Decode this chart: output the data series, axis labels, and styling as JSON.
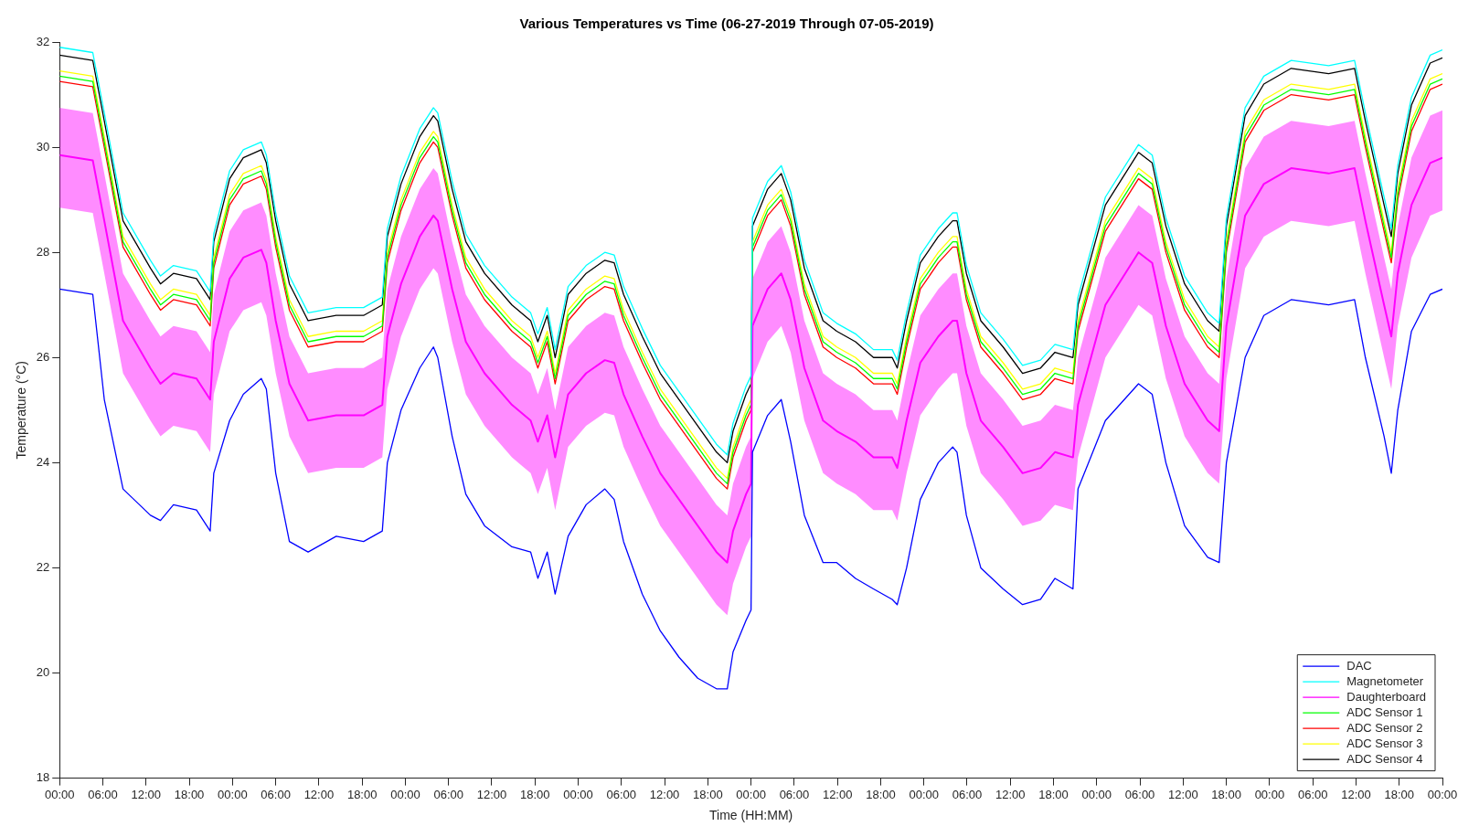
{
  "chart_data": {
    "type": "line",
    "title": "Various Temperatures vs Time (06-27-2019 Through 07-05-2019)",
    "xlabel": "Time (HH:MM)",
    "ylabel": "Temperature (°C)",
    "x": [
      "2019-06-27T00:00",
      "2019-06-27T04:36",
      "2019-06-27T06:12",
      "2019-06-27T08:48",
      "2019-06-27T12:36",
      "2019-06-27T14:00",
      "2019-06-27T15:48",
      "2019-06-27T19:00",
      "2019-06-27T20:54",
      "2019-06-27T21:24",
      "2019-06-27T23:36",
      "2019-06-28T01:30",
      "2019-06-28T04:00",
      "2019-06-28T04:42",
      "2019-06-28T06:00",
      "2019-06-28T07:54",
      "2019-06-28T10:30",
      "2019-06-28T14:24",
      "2019-06-28T18:12",
      "2019-06-28T20:48",
      "2019-06-28T21:30",
      "2019-06-28T23:24",
      "2019-06-29T02:00",
      "2019-06-29T03:54",
      "2019-06-29T04:30",
      "2019-06-29T06:30",
      "2019-06-29T08:24",
      "2019-06-29T11:00",
      "2019-06-29T14:48",
      "2019-06-29T17:24",
      "2019-06-29T18:24",
      "2019-06-29T19:42",
      "2019-06-29T20:48",
      "2019-06-29T22:36",
      "2019-06-30T01:06",
      "2019-06-30T03:42",
      "2019-06-30T05:00",
      "2019-06-30T06:18",
      "2019-06-30T08:54",
      "2019-06-30T11:24",
      "2019-06-30T14:00",
      "2019-06-30T16:36",
      "2019-06-30T19:12",
      "2019-06-30T20:42",
      "2019-06-30T21:30",
      "2019-06-30T23:18",
      "2019-07-01T00:00",
      "2019-07-01T00:12",
      "2019-07-01T02:18",
      "2019-07-01T04:12",
      "2019-07-01T05:30",
      "2019-07-01T07:24",
      "2019-07-01T10:00",
      "2019-07-01T11:54",
      "2019-07-01T14:30",
      "2019-07-01T17:00",
      "2019-07-01T19:36",
      "2019-07-01T20:18",
      "2019-07-01T21:36",
      "2019-07-01T23:30",
      "2019-07-02T02:00",
      "2019-07-02T04:00",
      "2019-07-02T04:36",
      "2019-07-02T05:54",
      "2019-07-02T07:54",
      "2019-07-02T11:00",
      "2019-07-02T13:42",
      "2019-07-02T16:12",
      "2019-07-02T18:12",
      "2019-07-02T20:42",
      "2019-07-02T21:24",
      "2019-07-03T01:12",
      "2019-07-03T05:48",
      "2019-07-03T07:42",
      "2019-07-03T09:36",
      "2019-07-03T12:12",
      "2019-07-03T15:24",
      "2019-07-03T17:00",
      "2019-07-03T18:00",
      "2019-07-03T20:36",
      "2019-07-03T23:12",
      "2019-07-04T03:00",
      "2019-07-04T08:12",
      "2019-07-04T11:48",
      "2019-07-04T13:18",
      "2019-07-04T15:54",
      "2019-07-04T16:54",
      "2019-07-04T17:48",
      "2019-07-04T19:42",
      "2019-07-04T22:18",
      "2019-07-05T00:00"
    ],
    "series": [
      {
        "name": "DAC",
        "color": "#0000ff",
        "values": [
          27.3,
          27.2,
          25.2,
          23.5,
          23.0,
          22.9,
          23.2,
          23.1,
          22.7,
          23.8,
          24.8,
          25.3,
          25.6,
          25.4,
          23.8,
          22.5,
          22.3,
          22.6,
          22.5,
          22.7,
          24.0,
          25.0,
          25.8,
          26.2,
          26.0,
          24.5,
          23.4,
          22.8,
          22.4,
          22.3,
          21.8,
          22.3,
          21.5,
          22.6,
          23.2,
          23.5,
          23.3,
          22.5,
          21.5,
          20.8,
          20.3,
          19.9,
          19.7,
          19.7,
          20.4,
          21.0,
          21.2,
          24.2,
          24.9,
          25.2,
          24.4,
          23.0,
          22.1,
          22.1,
          21.8,
          21.6,
          21.4,
          21.3,
          22.0,
          23.3,
          24.0,
          24.3,
          24.2,
          23.0,
          22.0,
          21.6,
          21.3,
          21.4,
          21.8,
          21.6,
          23.5,
          24.8,
          25.5,
          25.3,
          24.0,
          22.8,
          22.2,
          22.1,
          24.0,
          26.0,
          26.8,
          27.1,
          27.0,
          27.1,
          26.0,
          24.5,
          23.8,
          25.0,
          26.5,
          27.2,
          27.3
        ]
      },
      {
        "name": "Magnetometer",
        "color": "#00ffff",
        "values": [
          31.9,
          31.8,
          30.65,
          28.75,
          27.85,
          27.55,
          27.75,
          27.65,
          27.25,
          28.35,
          29.55,
          29.95,
          30.1,
          29.85,
          28.75,
          27.55,
          26.85,
          26.95,
          26.95,
          27.15,
          28.45,
          29.45,
          30.35,
          30.75,
          30.65,
          29.35,
          28.35,
          27.75,
          27.15,
          26.85,
          26.45,
          26.95,
          26.15,
          27.35,
          27.75,
          28.0,
          27.95,
          27.35,
          26.55,
          25.85,
          25.35,
          24.85,
          24.35,
          24.15,
          24.75,
          25.45,
          25.65,
          28.65,
          29.35,
          29.65,
          29.15,
          27.85,
          26.85,
          26.65,
          26.45,
          26.15,
          26.15,
          25.95,
          26.85,
          27.95,
          28.45,
          28.75,
          28.75,
          27.75,
          26.85,
          26.35,
          25.85,
          25.95,
          26.25,
          26.15,
          27.15,
          29.05,
          30.05,
          29.85,
          28.65,
          27.55,
          26.85,
          26.65,
          28.65,
          30.75,
          31.35,
          31.65,
          31.55,
          31.65,
          30.65,
          29.05,
          28.45,
          29.65,
          30.95,
          31.75,
          31.85
        ]
      },
      {
        "name": "Daughterboard",
        "color": "#ff00ff",
        "values": [
          29.85,
          29.75,
          28.6,
          26.7,
          25.8,
          25.5,
          25.7,
          25.6,
          25.2,
          26.3,
          27.5,
          27.9,
          28.05,
          27.8,
          26.7,
          25.5,
          24.8,
          24.9,
          24.9,
          25.1,
          26.4,
          27.4,
          28.3,
          28.7,
          28.6,
          27.3,
          26.3,
          25.7,
          25.1,
          24.8,
          24.4,
          24.9,
          24.1,
          25.3,
          25.7,
          25.95,
          25.9,
          25.3,
          24.5,
          23.8,
          23.3,
          22.8,
          22.3,
          22.1,
          22.7,
          23.4,
          23.6,
          26.6,
          27.3,
          27.6,
          27.1,
          25.8,
          24.8,
          24.6,
          24.4,
          24.1,
          24.1,
          23.9,
          24.8,
          25.9,
          26.4,
          26.7,
          26.7,
          25.7,
          24.8,
          24.3,
          23.8,
          23.9,
          24.2,
          24.1,
          25.1,
          27.0,
          28.0,
          27.8,
          26.6,
          25.5,
          24.8,
          24.6,
          26.6,
          28.7,
          29.3,
          29.6,
          29.5,
          29.6,
          28.6,
          27.0,
          26.4,
          27.6,
          28.9,
          29.7,
          29.8
        ],
        "lower": [
          28.85,
          28.75,
          27.6,
          25.7,
          24.8,
          24.5,
          24.7,
          24.6,
          24.2,
          25.3,
          26.5,
          26.9,
          27.05,
          26.8,
          25.7,
          24.5,
          23.8,
          23.9,
          23.9,
          24.1,
          25.4,
          26.4,
          27.3,
          27.7,
          27.6,
          26.3,
          25.3,
          24.7,
          24.1,
          23.8,
          23.4,
          23.9,
          23.1,
          24.3,
          24.7,
          24.95,
          24.9,
          24.3,
          23.5,
          22.8,
          22.3,
          21.8,
          21.3,
          21.1,
          21.7,
          22.4,
          22.6,
          25.6,
          26.3,
          26.6,
          26.1,
          24.8,
          23.8,
          23.6,
          23.4,
          23.1,
          23.1,
          22.9,
          23.8,
          24.9,
          25.4,
          25.7,
          25.7,
          24.7,
          23.8,
          23.3,
          22.8,
          22.9,
          23.2,
          23.1,
          24.1,
          26.0,
          27.0,
          26.8,
          25.6,
          24.5,
          23.8,
          23.6,
          25.6,
          27.7,
          28.3,
          28.6,
          28.5,
          28.6,
          27.6,
          26.0,
          25.4,
          26.6,
          27.9,
          28.7,
          28.8
        ],
        "upper": [
          30.75,
          30.65,
          29.5,
          27.6,
          26.7,
          26.4,
          26.6,
          26.5,
          26.1,
          27.2,
          28.4,
          28.8,
          28.95,
          28.7,
          27.6,
          26.4,
          25.7,
          25.8,
          25.8,
          26.0,
          27.3,
          28.3,
          29.2,
          29.6,
          29.5,
          28.2,
          27.2,
          26.6,
          26.0,
          25.7,
          25.3,
          25.8,
          25.0,
          26.2,
          26.6,
          26.85,
          26.8,
          26.2,
          25.4,
          24.7,
          24.2,
          23.7,
          23.2,
          23.0,
          23.6,
          24.3,
          24.5,
          27.5,
          28.2,
          28.5,
          28.0,
          26.7,
          25.7,
          25.5,
          25.3,
          25.0,
          25.0,
          24.8,
          25.7,
          26.8,
          27.3,
          27.6,
          27.6,
          26.6,
          25.7,
          25.2,
          24.7,
          24.8,
          25.1,
          25.0,
          26.0,
          27.9,
          28.9,
          28.7,
          27.5,
          26.4,
          25.7,
          25.5,
          27.5,
          29.6,
          30.2,
          30.5,
          30.4,
          30.5,
          29.5,
          27.9,
          27.3,
          28.5,
          29.8,
          30.6,
          30.7
        ]
      },
      {
        "name": "ADC Sensor 1",
        "color": "#00ff00",
        "values": [
          31.35,
          31.25,
          30.1,
          28.2,
          27.3,
          27.0,
          27.2,
          27.1,
          26.7,
          27.8,
          29.0,
          29.4,
          29.55,
          29.3,
          28.2,
          27.0,
          26.3,
          26.4,
          26.4,
          26.6,
          27.9,
          28.9,
          29.8,
          30.2,
          30.1,
          28.8,
          27.8,
          27.2,
          26.6,
          26.3,
          25.9,
          26.4,
          25.6,
          26.8,
          27.2,
          27.45,
          27.4,
          26.8,
          26.0,
          25.3,
          24.8,
          24.3,
          23.8,
          23.6,
          24.2,
          24.9,
          25.1,
          28.1,
          28.8,
          29.1,
          28.6,
          27.3,
          26.3,
          26.1,
          25.9,
          25.6,
          25.6,
          25.4,
          26.3,
          27.4,
          27.9,
          28.2,
          28.2,
          27.2,
          26.3,
          25.8,
          25.3,
          25.4,
          25.7,
          25.6,
          26.6,
          28.5,
          29.5,
          29.3,
          28.1,
          27.0,
          26.3,
          26.1,
          28.1,
          30.2,
          30.8,
          31.1,
          31.0,
          31.1,
          30.1,
          28.5,
          27.9,
          29.1,
          30.4,
          31.2,
          31.3
        ]
      },
      {
        "name": "ADC Sensor 2",
        "color": "#ff0000",
        "values": [
          31.25,
          31.15,
          30.0,
          28.1,
          27.2,
          26.9,
          27.1,
          27.0,
          26.6,
          27.7,
          28.9,
          29.3,
          29.45,
          29.2,
          28.1,
          26.9,
          26.2,
          26.3,
          26.3,
          26.5,
          27.8,
          28.8,
          29.7,
          30.1,
          30.0,
          28.7,
          27.7,
          27.1,
          26.5,
          26.2,
          25.8,
          26.3,
          25.5,
          26.7,
          27.1,
          27.35,
          27.3,
          26.7,
          25.9,
          25.2,
          24.7,
          24.2,
          23.7,
          23.5,
          24.1,
          24.8,
          25.0,
          28.0,
          28.7,
          29.0,
          28.5,
          27.2,
          26.2,
          26.0,
          25.8,
          25.5,
          25.5,
          25.3,
          26.2,
          27.3,
          27.8,
          28.1,
          28.1,
          27.1,
          26.2,
          25.7,
          25.2,
          25.3,
          25.6,
          25.5,
          26.5,
          28.4,
          29.4,
          29.2,
          28.0,
          26.9,
          26.2,
          26.0,
          28.0,
          30.1,
          30.7,
          31.0,
          30.9,
          31.0,
          30.0,
          28.4,
          27.8,
          29.0,
          30.3,
          31.1,
          31.2
        ]
      },
      {
        "name": "ADC Sensor 3",
        "color": "#ffff00",
        "values": [
          31.45,
          31.35,
          30.2,
          28.3,
          27.4,
          27.1,
          27.3,
          27.2,
          26.8,
          27.9,
          29.1,
          29.5,
          29.65,
          29.4,
          28.3,
          27.1,
          26.4,
          26.5,
          26.5,
          26.7,
          28.0,
          29.0,
          29.9,
          30.3,
          30.2,
          28.9,
          27.9,
          27.3,
          26.7,
          26.4,
          26.0,
          26.5,
          25.7,
          26.9,
          27.3,
          27.55,
          27.5,
          26.9,
          26.1,
          25.4,
          24.9,
          24.4,
          23.9,
          23.7,
          24.3,
          25.0,
          25.2,
          28.2,
          28.9,
          29.2,
          28.7,
          27.4,
          26.4,
          26.2,
          26.0,
          25.7,
          25.7,
          25.5,
          26.4,
          27.5,
          28.0,
          28.3,
          28.3,
          27.3,
          26.4,
          25.9,
          25.4,
          25.5,
          25.8,
          25.7,
          26.7,
          28.6,
          29.6,
          29.4,
          28.2,
          27.1,
          26.4,
          26.2,
          28.2,
          30.3,
          30.9,
          31.2,
          31.1,
          31.2,
          30.2,
          28.6,
          28.0,
          29.2,
          30.5,
          31.3,
          31.4
        ]
      },
      {
        "name": "ADC Sensor 4",
        "color": "#000000",
        "values": [
          31.75,
          31.65,
          30.5,
          28.6,
          27.7,
          27.4,
          27.6,
          27.5,
          27.1,
          28.2,
          29.4,
          29.8,
          29.95,
          29.7,
          28.6,
          27.4,
          26.7,
          26.8,
          26.8,
          27.0,
          28.3,
          29.3,
          30.2,
          30.6,
          30.5,
          29.2,
          28.2,
          27.6,
          27.0,
          26.7,
          26.3,
          26.8,
          26.0,
          27.2,
          27.6,
          27.85,
          27.8,
          27.2,
          26.4,
          25.7,
          25.2,
          24.7,
          24.2,
          24.0,
          24.6,
          25.3,
          25.5,
          28.5,
          29.2,
          29.5,
          29.0,
          27.7,
          26.7,
          26.5,
          26.3,
          26.0,
          26.0,
          25.8,
          26.7,
          27.8,
          28.3,
          28.6,
          28.6,
          27.6,
          26.7,
          26.2,
          25.7,
          25.8,
          26.1,
          26.0,
          27.0,
          28.9,
          29.9,
          29.7,
          28.5,
          27.4,
          26.7,
          26.5,
          28.5,
          30.6,
          31.2,
          31.5,
          31.4,
          31.5,
          30.5,
          28.9,
          28.3,
          29.5,
          30.8,
          31.6,
          31.7
        ]
      }
    ],
    "xlim": [
      "2019-06-27T00:00",
      "2019-07-05T00:00"
    ],
    "xticks": [
      {
        "value": "2019-06-27T00:00",
        "label": "00:00"
      },
      {
        "value": "2019-06-27T06:00",
        "label": "06:00"
      },
      {
        "value": "2019-06-27T12:00",
        "label": "12:00"
      },
      {
        "value": "2019-06-27T18:00",
        "label": "18:00"
      },
      {
        "value": "2019-06-28T00:00",
        "label": "00:00"
      },
      {
        "value": "2019-06-28T06:00",
        "label": "06:00"
      },
      {
        "value": "2019-06-28T12:00",
        "label": "12:00"
      },
      {
        "value": "2019-06-28T18:00",
        "label": "18:00"
      },
      {
        "value": "2019-06-29T00:00",
        "label": "00:00"
      },
      {
        "value": "2019-06-29T06:00",
        "label": "06:00"
      },
      {
        "value": "2019-06-29T12:00",
        "label": "12:00"
      },
      {
        "value": "2019-06-29T18:00",
        "label": "18:00"
      },
      {
        "value": "2019-06-30T00:00",
        "label": "00:00"
      },
      {
        "value": "2019-06-30T06:00",
        "label": "06:00"
      },
      {
        "value": "2019-06-30T12:00",
        "label": "12:00"
      },
      {
        "value": "2019-06-30T18:00",
        "label": "18:00"
      },
      {
        "value": "2019-07-01T00:00",
        "label": "00:00"
      },
      {
        "value": "2019-07-01T06:00",
        "label": "06:00"
      },
      {
        "value": "2019-07-01T12:00",
        "label": "12:00"
      },
      {
        "value": "2019-07-01T18:00",
        "label": "18:00"
      },
      {
        "value": "2019-07-02T00:00",
        "label": "00:00"
      },
      {
        "value": "2019-07-02T06:00",
        "label": "06:00"
      },
      {
        "value": "2019-07-02T12:00",
        "label": "12:00"
      },
      {
        "value": "2019-07-02T18:00",
        "label": "18:00"
      },
      {
        "value": "2019-07-03T00:00",
        "label": "00:00"
      },
      {
        "value": "2019-07-03T06:00",
        "label": "06:00"
      },
      {
        "value": "2019-07-03T12:00",
        "label": "12:00"
      },
      {
        "value": "2019-07-03T18:00",
        "label": "18:00"
      },
      {
        "value": "2019-07-04T00:00",
        "label": "00:00"
      },
      {
        "value": "2019-07-04T06:00",
        "label": "06:00"
      },
      {
        "value": "2019-07-04T12:00",
        "label": "12:00"
      },
      {
        "value": "2019-07-04T18:00",
        "label": "18:00"
      },
      {
        "value": "2019-07-05T00:00",
        "label": "00:00"
      }
    ],
    "ylim": [
      18,
      32
    ],
    "yticks": [
      18,
      20,
      22,
      24,
      26,
      28,
      30,
      32
    ],
    "grid": false,
    "legend": "bottom right",
    "marker": "none",
    "line_style": "solid"
  }
}
